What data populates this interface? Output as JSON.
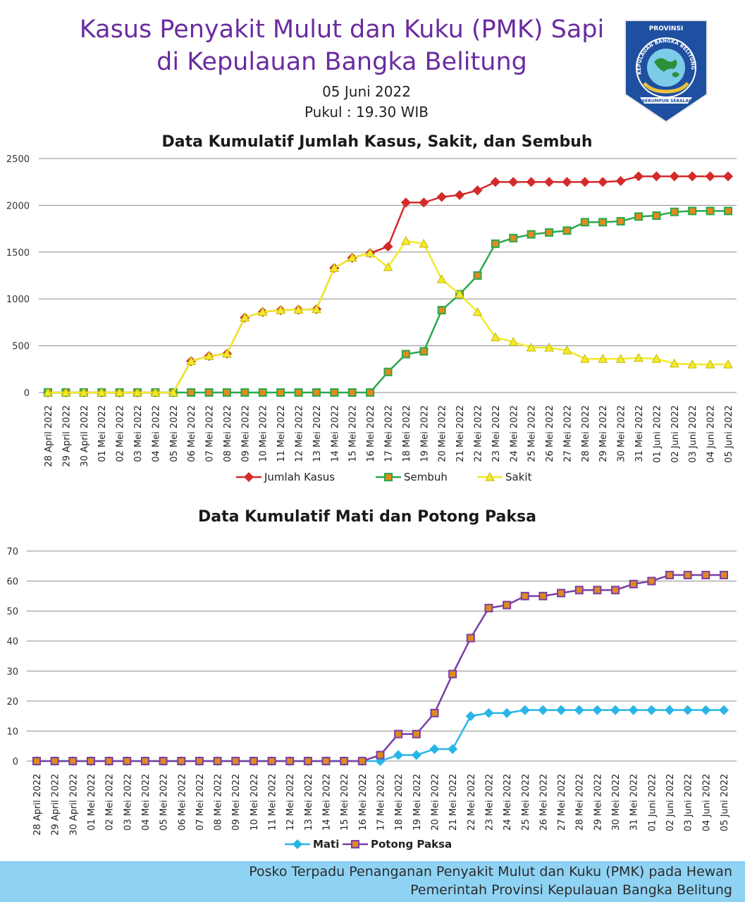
{
  "header": {
    "title_line1": "Kasus Penyakit Mulut dan Kuku (PMK) Sapi",
    "title_line2": "di Kepulauan Bangka Belitung",
    "date": "05 Juni 2022",
    "time": "Pukul : 19.30 WIB"
  },
  "logo": {
    "top_text": "PROVINSI",
    "ring_text": "KEPULAUAN BANGKA BELITUNG",
    "ribbon_text": "SERUMPUN SEBALAI"
  },
  "footer": {
    "line1": "Posko Terpadu Penanganan Penyakit Mulut dan Kuku (PMK) pada Hewan",
    "line2": "Pemerintah Provinsi Kepulauan Bangka Belitung"
  },
  "colors": {
    "title": "#6a2ca0",
    "jumlah_kasus": "#d42a2a",
    "sembuh": "#2aa84a",
    "sakit": "#f2ea2a",
    "mati": "#29b6e6",
    "potong_paksa": "#7a3fa5",
    "footer_bg": "#8fd3f4",
    "grid": "#8c8c8c"
  },
  "chart_data": [
    {
      "type": "line",
      "title": "Data Kumulatif Jumlah Kasus, Sakit, dan Sembuh",
      "xlabel": "",
      "ylabel": "",
      "ylim": [
        0,
        2500
      ],
      "yticks": [
        0,
        500,
        1000,
        1500,
        2000,
        2500
      ],
      "grid": true,
      "legend_position": "bottom",
      "categories": [
        "28 April 2022",
        "29 April 2022",
        "30 April 2022",
        "01 Mei 2022",
        "02 Mei 2022",
        "03 Mei 2022",
        "04 Mei 2022",
        "05 Mei 2022",
        "06 Mei 2022",
        "07 Mei 2022",
        "08 Mei 2022",
        "09 Mei 2022",
        "10 Mei 2022",
        "11 Mei 2022",
        "12 Mei 2022",
        "13 Mei 2022",
        "14 Mei 2022",
        "15 Mei 2022",
        "16 Mei 2022",
        "17 Mei 2022",
        "18 Mei 2022",
        "19 Mei 2022",
        "20 Mei 2022",
        "21 Mei 2022",
        "22 Mei 2022",
        "23 Mei 2022",
        "24 Mei 2022",
        "25 Mei 2022",
        "26 Mei 2022",
        "27 Mei 2022",
        "28 Mei 2022",
        "29 Mei 2022",
        "30 Mei 2022",
        "31 Mei 2022",
        "01 Juni 2022",
        "02 Juni 2022",
        "03 Juni 2022",
        "04 Juni 2022",
        "05 Juni 2022"
      ],
      "series": [
        {
          "name": "Jumlah Kasus",
          "color": "#d42a2a",
          "marker": "diamond",
          "values": [
            0,
            0,
            0,
            0,
            0,
            0,
            0,
            0,
            335,
            390,
            415,
            800,
            860,
            880,
            885,
            890,
            1330,
            1440,
            1490,
            1560,
            2030,
            2030,
            2090,
            2110,
            2160,
            2250,
            2250,
            2250,
            2250,
            2250,
            2250,
            2250,
            2260,
            2310,
            2310,
            2310,
            2310,
            2310,
            2310
          ]
        },
        {
          "name": "Sembuh",
          "color": "#2aa84a",
          "marker": "square",
          "values": [
            0,
            0,
            0,
            0,
            0,
            0,
            0,
            0,
            0,
            0,
            0,
            0,
            0,
            0,
            0,
            0,
            0,
            0,
            0,
            220,
            410,
            440,
            880,
            1050,
            1250,
            1590,
            1650,
            1690,
            1710,
            1730,
            1820,
            1820,
            1830,
            1880,
            1890,
            1930,
            1940,
            1940,
            1940
          ]
        },
        {
          "name": "Sakit",
          "color": "#f2ea2a",
          "marker": "triangle",
          "values": [
            0,
            0,
            0,
            0,
            0,
            0,
            0,
            0,
            335,
            390,
            415,
            800,
            860,
            880,
            885,
            890,
            1330,
            1440,
            1490,
            1340,
            1620,
            1590,
            1210,
            1050,
            860,
            590,
            540,
            480,
            480,
            450,
            360,
            360,
            360,
            370,
            360,
            310,
            300,
            300,
            300
          ]
        }
      ]
    },
    {
      "type": "line",
      "title": "Data Kumulatif Mati dan Potong Paksa",
      "xlabel": "",
      "ylabel": "",
      "ylim": [
        0,
        70
      ],
      "yticks": [
        0,
        10,
        20,
        30,
        40,
        50,
        60,
        70
      ],
      "grid": true,
      "legend_position": "bottom",
      "categories": [
        "28 April 2022",
        "29 April 2022",
        "30 April 2022",
        "01 Mei 2022",
        "02 Mei 2022",
        "03 Mei 2022",
        "04 Mei 2022",
        "05 Mei 2022",
        "06 Mei 2022",
        "07 Mei 2022",
        "08 Mei 2022",
        "09 Mei 2022",
        "10 Mei 2022",
        "11 Mei 2022",
        "12 Mei 2022",
        "13 Mei 2022",
        "14 Mei 2022",
        "15 Mei 2022",
        "16 Mei 2022",
        "17 Mei 2022",
        "18 Mei 2022",
        "19 Mei 2022",
        "20 Mei 2022",
        "21 Mei 2022",
        "22 Mei 2022",
        "23 Mei 2022",
        "24 Mei 2022",
        "25 Mei 2022",
        "26 Mei 2022",
        "27 Mei 2022",
        "28 Mei 2022",
        "29 Mei 2022",
        "30 Mei 2022",
        "31 Mei 2022",
        "01 Juni 2022",
        "02 Juni 2022",
        "03 Juni 2022",
        "04 Juni 2022",
        "05 Juni 2022"
      ],
      "series": [
        {
          "name": "Mati",
          "color": "#29b6e6",
          "marker": "diamond",
          "values": [
            0,
            0,
            0,
            0,
            0,
            0,
            0,
            0,
            0,
            0,
            0,
            0,
            0,
            0,
            0,
            0,
            0,
            0,
            0,
            0,
            2,
            2,
            4,
            4,
            15,
            16,
            16,
            17,
            17,
            17,
            17,
            17,
            17,
            17,
            17,
            17,
            17,
            17,
            17
          ]
        },
        {
          "name": "Potong Paksa",
          "color": "#7a3fa5",
          "marker": "square",
          "values": [
            0,
            0,
            0,
            0,
            0,
            0,
            0,
            0,
            0,
            0,
            0,
            0,
            0,
            0,
            0,
            0,
            0,
            0,
            0,
            2,
            9,
            9,
            16,
            29,
            41,
            51,
            52,
            55,
            55,
            56,
            57,
            57,
            57,
            59,
            60,
            62,
            62,
            62,
            62
          ]
        }
      ]
    }
  ]
}
